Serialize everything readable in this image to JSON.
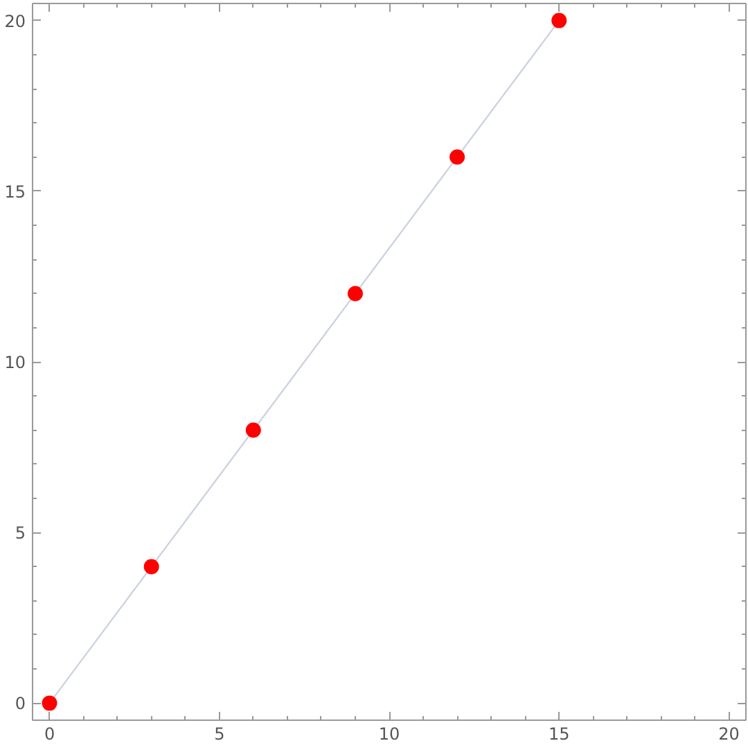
{
  "chart_data": {
    "type": "scatter",
    "xlim": [
      -0.5,
      20.5
    ],
    "ylim": [
      -0.5,
      20.5
    ],
    "xticks": [
      0,
      5,
      10,
      15,
      20
    ],
    "yticks": [
      0,
      5,
      10,
      15,
      20
    ],
    "grid": false,
    "marker": "circle",
    "series": [
      {
        "type": "line",
        "color": "#ccd3e0",
        "x": [
          0,
          15
        ],
        "values": [
          0,
          20
        ],
        "marker": "none",
        "line_style": "solid"
      },
      {
        "color": "#ff0000",
        "x": [
          0,
          3,
          6,
          9,
          12,
          15
        ],
        "values": [
          0,
          4,
          8,
          12,
          16,
          20
        ]
      }
    ]
  }
}
